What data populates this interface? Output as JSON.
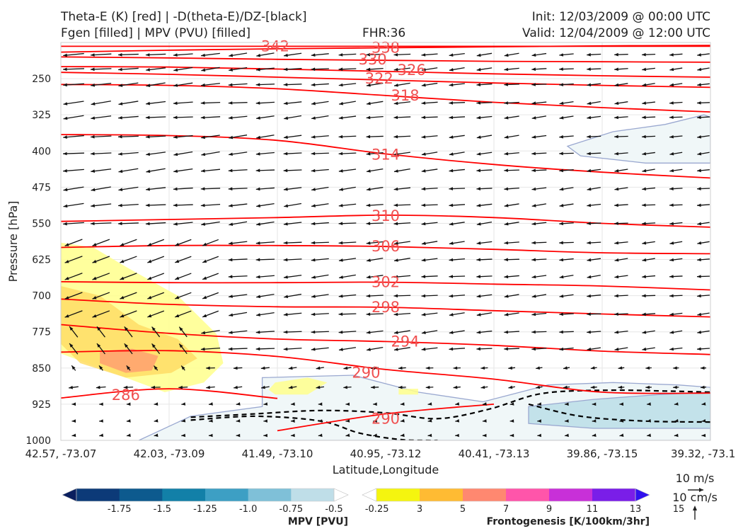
{
  "header": {
    "title_left_1": "Theta-E (K) [red] | -D(theta-E)/DZ-[black]",
    "title_left_2": "Fgen [filled] | MPV (PVU) [filled]",
    "fhr": "FHR:36",
    "init": "Init: 12/03/2009 @ 00:00 UTC",
    "valid": "Valid: 12/04/2009 @ 12:00 UTC"
  },
  "colors": {
    "theta_e": "#ff0000",
    "dthetae_dz": "#000000",
    "mpv_contour": "#9aa8d0",
    "wind_arrow": "#111111"
  },
  "chart_data": {
    "type": "cross-section",
    "xlabel": "Latitude,Longitude",
    "ylabel": "Pressure [hPa]",
    "x_ticks": [
      "42.57, -73.07",
      "42.03, -73.09",
      "41.49, -73.10",
      "40.95, -73.12",
      "40.41, -73.13",
      "39.86, -73.15",
      "39.32, -73.1"
    ],
    "y_ticks": [
      250,
      325,
      400,
      475,
      550,
      625,
      700,
      775,
      850,
      925,
      1000
    ],
    "ylim": [
      1000,
      175
    ],
    "y_inverted": true,
    "grid": true,
    "theta_e_contours": [
      {
        "label": "342",
        "y": [
          183,
          183,
          183,
          183,
          183,
          183,
          183
        ]
      },
      {
        "label": "338",
        "y": [
          195,
          191,
          188,
          186,
          184,
          182,
          181
        ]
      },
      {
        "label": "330",
        "y": [
          205,
          207,
          210,
          212,
          214,
          215,
          216
        ]
      },
      {
        "label": "326",
        "y": [
          225,
          226,
          230,
          235,
          240,
          244,
          247
        ]
      },
      {
        "label": "322",
        "y": [
          237,
          241,
          247,
          253,
          259,
          264,
          268
        ]
      },
      {
        "label": "318",
        "y": [
          262,
          264,
          271,
          285,
          299,
          310,
          319
        ]
      },
      {
        "label": "314",
        "y": [
          366,
          368,
          378,
          406,
          428,
          444,
          456
        ]
      },
      {
        "label": "310",
        "y": [
          546,
          542,
          538,
          533,
          538,
          550,
          558
        ]
      },
      {
        "label": "306",
        "y": [
          600,
          596,
          596,
          598,
          604,
          611,
          613
        ]
      },
      {
        "label": "302",
        "y": [
          671,
          673,
          673,
          672,
          676,
          680,
          688
        ]
      },
      {
        "label": "298",
        "y": [
          707,
          718,
          723,
          724,
          731,
          738,
          744
        ]
      },
      {
        "label": "294",
        "y": [
          760,
          778,
          790,
          795,
          803,
          815,
          822
        ]
      },
      {
        "label": "290",
        "y": [
          817,
          814,
          826,
          853,
          873,
          900,
          902
        ]
      },
      {
        "label": "290",
        "y": [
          null,
          null,
          980,
          945,
          925,
          null,
          null
        ]
      },
      {
        "label": "286",
        "y": [
          912,
          893,
          913,
          null,
          null,
          null,
          null
        ]
      }
    ],
    "label_positions": [
      {
        "label": "342",
        "x": 0.33,
        "y": 183
      },
      {
        "label": "338",
        "x": 0.5,
        "y": 186
      },
      {
        "label": "330",
        "x": 0.48,
        "y": 210
      },
      {
        "label": "326",
        "x": 0.54,
        "y": 232
      },
      {
        "label": "322",
        "x": 0.49,
        "y": 250
      },
      {
        "label": "318",
        "x": 0.53,
        "y": 285
      },
      {
        "label": "314",
        "x": 0.5,
        "y": 408
      },
      {
        "label": "310",
        "x": 0.5,
        "y": 535
      },
      {
        "label": "306",
        "x": 0.5,
        "y": 598
      },
      {
        "label": "302",
        "x": 0.5,
        "y": 672
      },
      {
        "label": "298",
        "x": 0.5,
        "y": 724
      },
      {
        "label": "294",
        "x": 0.53,
        "y": 795
      },
      {
        "label": "290",
        "x": 0.47,
        "y": 860
      },
      {
        "label": "290",
        "x": 0.5,
        "y": 955
      },
      {
        "label": "286",
        "x": 0.1,
        "y": 906
      }
    ],
    "fgen_regions": [
      {
        "level": 3,
        "color": "#ffff8c",
        "x": [
          0.0,
          0.05,
          0.1,
          0.18,
          0.24,
          0.25,
          0.22,
          0.16,
          0.08,
          0.0
        ],
        "y": [
          590,
          600,
          640,
          700,
          780,
          840,
          880,
          900,
          860,
          820
        ]
      },
      {
        "level": 5,
        "color": "#ffdd66",
        "x": [
          0.0,
          0.06,
          0.12,
          0.18,
          0.21,
          0.17,
          0.1,
          0.03,
          0.0
        ],
        "y": [
          680,
          700,
          760,
          790,
          830,
          860,
          870,
          840,
          800
        ]
      },
      {
        "level": 7,
        "color": "#ffa070",
        "x": [
          0.06,
          0.11,
          0.15,
          0.14,
          0.1,
          0.06
        ],
        "y": [
          815,
          810,
          825,
          855,
          860,
          840
        ]
      },
      {
        "level": 3,
        "color": "#ffff8c",
        "x": [
          0.33,
          0.38,
          0.41,
          0.38,
          0.33,
          0.32
        ],
        "y": [
          880,
          870,
          880,
          905,
          905,
          895
        ]
      },
      {
        "level": 3,
        "color": "#ffff8c",
        "x": [
          0.52,
          0.55,
          0.55,
          0.52
        ],
        "y": [
          893,
          893,
          905,
          905
        ]
      }
    ],
    "mpv_regions": [
      {
        "level": -0.25,
        "color": "#f0f7f8",
        "x": [
          0.78,
          0.85,
          0.93,
          0.99,
          1.0,
          1.0,
          0.9,
          0.8
        ],
        "y": [
          390,
          360,
          345,
          325,
          330,
          425,
          425,
          410
        ]
      },
      {
        "level": -0.25,
        "color": "#f0f7f8",
        "x": [
          0.31,
          0.45,
          0.55,
          0.65,
          0.75,
          0.85,
          0.95,
          1.0,
          1.0,
          0.12,
          0.2,
          0.31
        ],
        "y": [
          870,
          865,
          900,
          920,
          885,
          880,
          885,
          890,
          1000,
          1000,
          950,
          930
        ]
      },
      {
        "level": -0.5,
        "color": "#c3e2ea",
        "x": [
          0.72,
          0.82,
          0.92,
          1.0,
          1.0,
          0.92,
          0.82,
          0.72
        ],
        "y": [
          930,
          915,
          905,
          900,
          975,
          975,
          975,
          965
        ]
      }
    ],
    "dthetae_dz_contours": [
      {
        "x": [
          0.2,
          0.3,
          0.4,
          0.5,
          0.58,
          0.66,
          0.74,
          0.84,
          0.94,
          1.0
        ],
        "y": [
          952,
          945,
          938,
          943,
          955,
          935,
          903,
          896,
          898,
          900
        ]
      },
      {
        "x": [
          0.2,
          0.3,
          0.4,
          0.46,
          0.52,
          0.56,
          0.58
        ],
        "y": [
          958,
          950,
          960,
          985,
          998,
          1000,
          1000
        ]
      },
      {
        "x": [
          0.72,
          0.8,
          0.9,
          1.0
        ],
        "y": [
          925,
          950,
          960,
          962
        ]
      }
    ],
    "wind_arrows_levels": [
      200,
      230,
      262,
      300,
      330,
      370,
      405,
      440,
      478,
      512,
      550,
      590,
      625,
      660,
      700,
      738,
      775,
      810,
      850,
      890,
      925,
      960,
      990
    ],
    "wind_arrows_columns": 24
  },
  "colorbars": {
    "mpv": {
      "title": "MPV [PVU]",
      "ticks": [
        "-1.75",
        "-1.5",
        "-1.25",
        "-1.0",
        "-0.75",
        "-0.5",
        "-0.25"
      ],
      "colors": [
        "#0a1e5e",
        "#0c3a78",
        "#0d5a8e",
        "#1280a8",
        "#3d9fc4",
        "#7fc0d8",
        "#bfdee8",
        "#ffffff"
      ]
    },
    "frontogenesis": {
      "title": "Frontogenesis [K/100km/3hr]",
      "ticks": [
        "3",
        "5",
        "7",
        "9",
        "11",
        "13",
        "15"
      ],
      "colors": [
        "#ffffff",
        "#f5f50f",
        "#ffbb33",
        "#ff8870",
        "#ff55aa",
        "#c830d8",
        "#7a1ee8",
        "#3010ee"
      ]
    }
  },
  "legend": {
    "wind_horizontal": "10 m/s",
    "wind_vertical": "10 cm/s"
  }
}
